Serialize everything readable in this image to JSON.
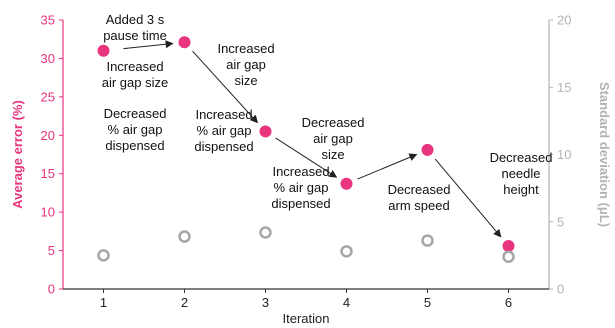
{
  "chart_data": {
    "type": "scatter",
    "x": [
      1,
      2,
      3,
      4,
      5,
      6
    ],
    "xlabel": "Iteration",
    "xlim": [
      0.5,
      6.5
    ],
    "series": [
      {
        "axis": "left",
        "values": [
          31,
          32.1,
          20.5,
          13.7,
          18.1,
          5.6
        ],
        "marker": "filled-circle",
        "color": "#e8357e"
      },
      {
        "axis": "right",
        "values": [
          2.5,
          3.9,
          4.2,
          2.8,
          3.6,
          2.4
        ],
        "marker": "open-circle",
        "color": "#a6a6a6"
      }
    ],
    "y_left": {
      "label": "Average error (%)",
      "ylim": [
        0,
        35
      ],
      "ticks": [
        0,
        5,
        10,
        15,
        20,
        25,
        30,
        35
      ],
      "color": "#e8357e"
    },
    "y_right": {
      "label": "Standard deviation (μL)",
      "ylim": [
        0,
        20
      ],
      "ticks": [
        0,
        5,
        10,
        15,
        20
      ],
      "color": "#b3b3b3"
    },
    "grid": false,
    "annotations": [
      {
        "lines": [
          "Added 3 s",
          "pause time"
        ]
      },
      {
        "lines": [
          "Increased",
          "air gap size"
        ]
      },
      {
        "lines": [
          "Decreased",
          "% air gap",
          "dispensed"
        ]
      },
      {
        "lines": [
          "Increased",
          "air gap",
          "size"
        ]
      },
      {
        "lines": [
          "Increased",
          "% air gap",
          "dispensed"
        ]
      },
      {
        "lines": [
          "Decreased",
          "air gap",
          "size"
        ]
      },
      {
        "lines": [
          "Increased",
          "% air gap",
          "dispensed"
        ]
      },
      {
        "lines": [
          "Decreased",
          "arm speed"
        ]
      },
      {
        "lines": [
          "Decreased",
          "needle",
          "height"
        ]
      }
    ]
  }
}
